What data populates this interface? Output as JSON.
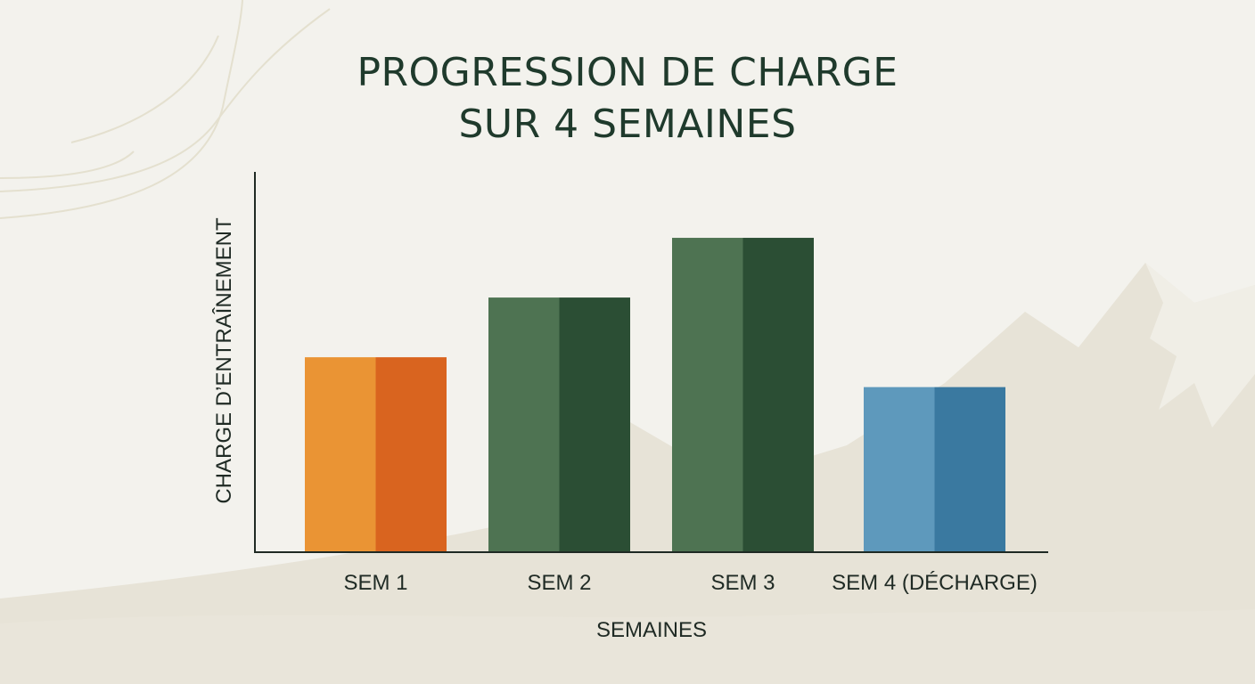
{
  "chart_data": {
    "type": "bar",
    "title_lines": [
      "PROGRESSION DE CHARGE",
      "SUR 4 SEMAINES"
    ],
    "xlabel": "SEMAINES",
    "ylabel": "CHARGE D’ENTRAÎNEMENT",
    "categories": [
      "SEM 1",
      "SEM 2",
      "SEM 3",
      "SEM 4 (DÉCHARGE)"
    ],
    "values": [
      52,
      68,
      84,
      44
    ],
    "ylim": [
      0,
      100
    ],
    "grid": false,
    "bar_colors": [
      {
        "light": "#ea9434",
        "dark": "#d9641f"
      },
      {
        "light": "#4e7352",
        "dark": "#2b4e34"
      },
      {
        "light": "#4e7352",
        "dark": "#2b4e34"
      },
      {
        "light": "#5e99bc",
        "dark": "#3a79a0"
      }
    ]
  }
}
